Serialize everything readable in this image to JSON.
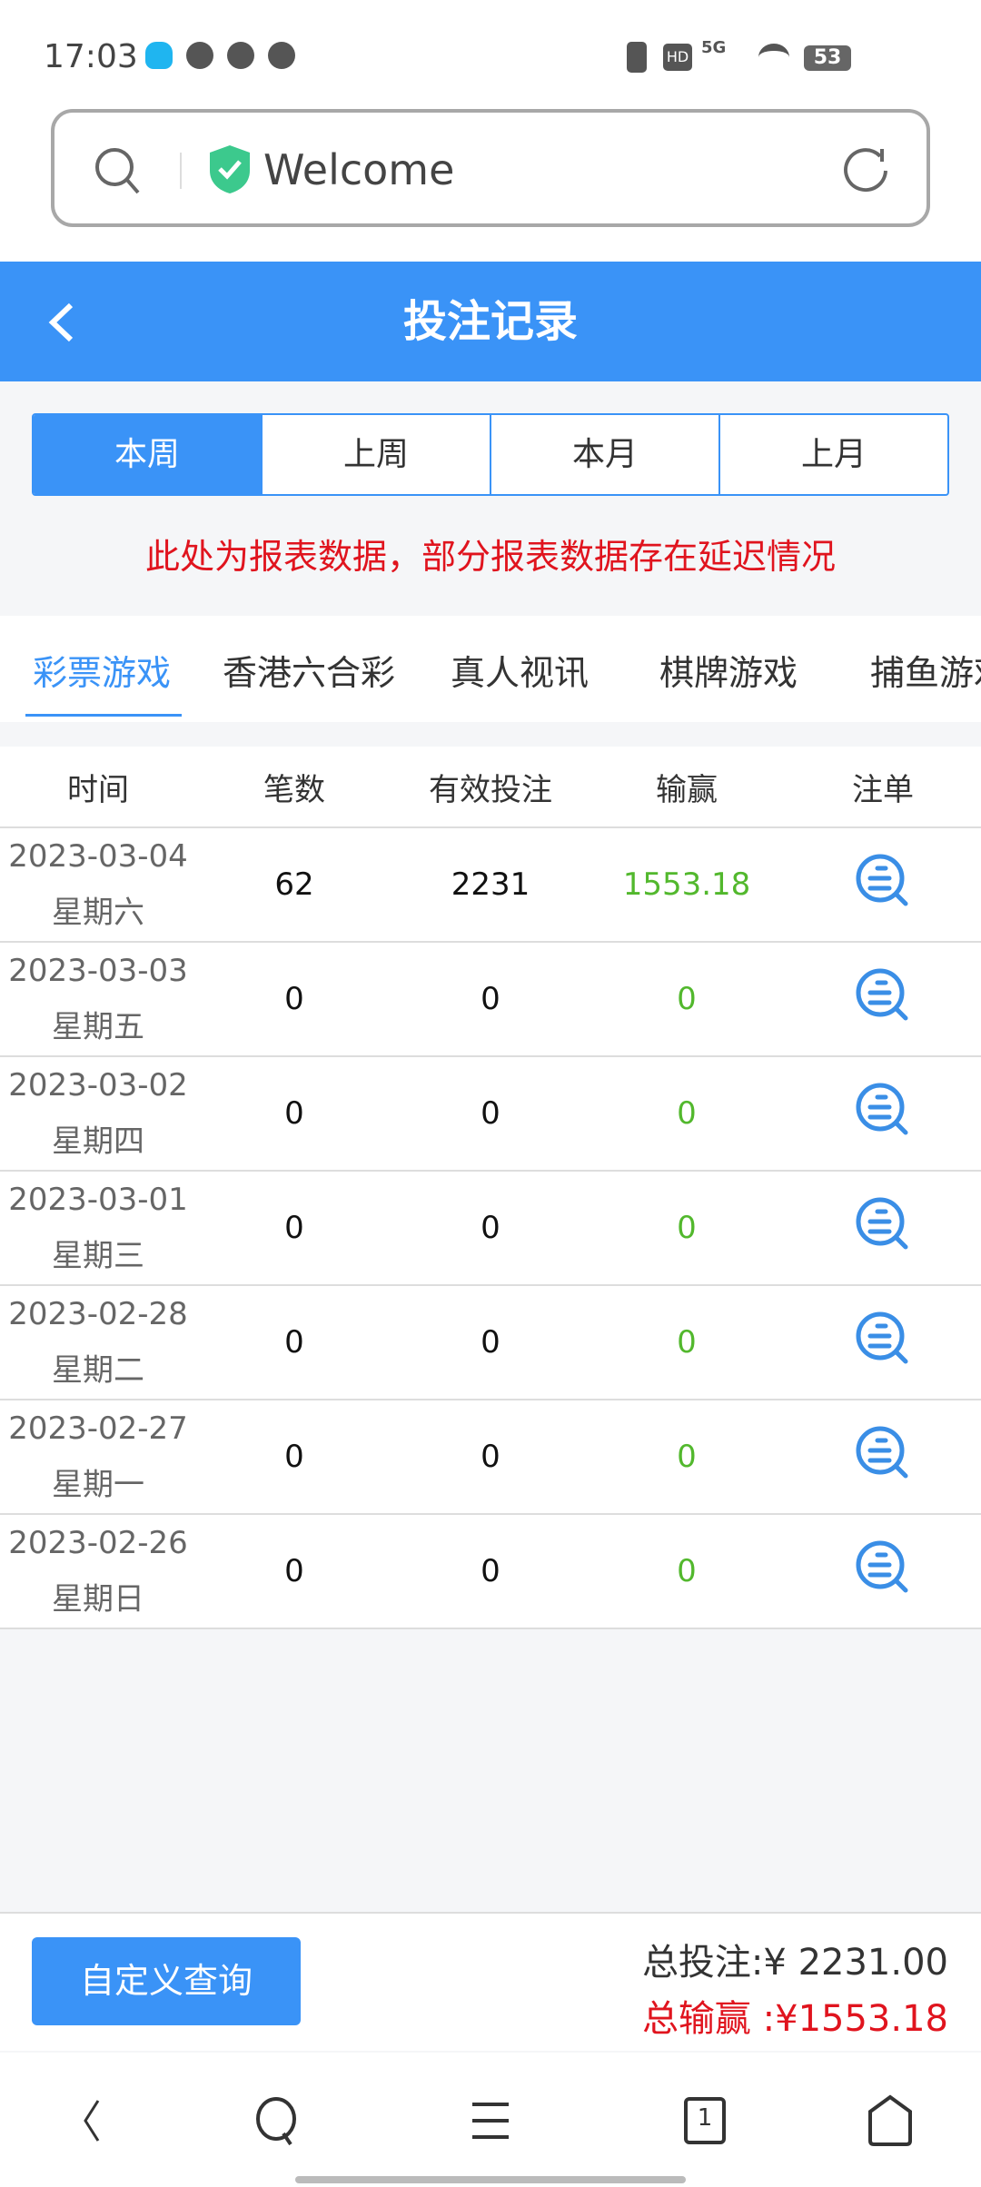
{
  "status_bar": {
    "time": "17:03",
    "battery": "53",
    "network": "5G"
  },
  "browser": {
    "url_text": "Welcome"
  },
  "header": {
    "title": "投注记录"
  },
  "periods": [
    {
      "label": "本周",
      "active": true
    },
    {
      "label": "上周"
    },
    {
      "label": "本月"
    },
    {
      "label": "上月"
    }
  ],
  "notice": "此处为报表数据，部分报表数据存在延迟情况",
  "game_tabs": [
    {
      "label": "彩票游戏",
      "active": true
    },
    {
      "label": "香港六合彩"
    },
    {
      "label": "真人视讯"
    },
    {
      "label": "棋牌游戏"
    },
    {
      "label": "捕鱼游戏"
    }
  ],
  "table": {
    "headers": [
      "时间",
      "笔数",
      "有效投注",
      "输赢",
      "注单"
    ],
    "rows": [
      {
        "date": "2023-03-04",
        "weekday": "星期六",
        "count": "62",
        "bet": "2231",
        "win": "1553.18"
      },
      {
        "date": "2023-03-03",
        "weekday": "星期五",
        "count": "0",
        "bet": "0",
        "win": "0"
      },
      {
        "date": "2023-03-02",
        "weekday": "星期四",
        "count": "0",
        "bet": "0",
        "win": "0"
      },
      {
        "date": "2023-03-01",
        "weekday": "星期三",
        "count": "0",
        "bet": "0",
        "win": "0"
      },
      {
        "date": "2023-02-28",
        "weekday": "星期二",
        "count": "0",
        "bet": "0",
        "win": "0"
      },
      {
        "date": "2023-02-27",
        "weekday": "星期一",
        "count": "0",
        "bet": "0",
        "win": "0"
      },
      {
        "date": "2023-02-26",
        "weekday": "星期日",
        "count": "0",
        "bet": "0",
        "win": "0"
      }
    ]
  },
  "footer": {
    "custom_query": "自定义查询",
    "total_bet": "总投注:¥ 2231.00",
    "total_win": "总输赢 :¥1553.18"
  },
  "nav": {
    "tabs_count": "1"
  },
  "colors": {
    "accent": "#3a93f7",
    "win": "#52b82d",
    "alert": "#e0141e"
  }
}
